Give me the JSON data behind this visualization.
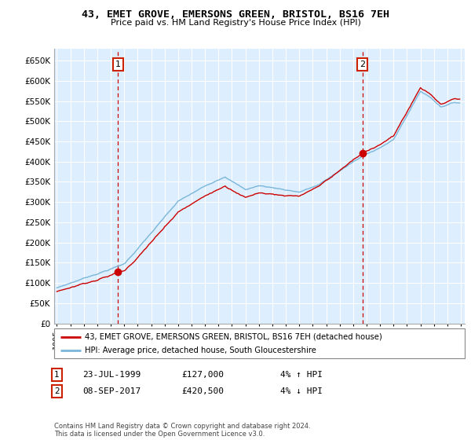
{
  "title": "43, EMET GROVE, EMERSONS GREEN, BRISTOL, BS16 7EH",
  "subtitle": "Price paid vs. HM Land Registry's House Price Index (HPI)",
  "ylabel_ticks": [
    "£650K",
    "£600K",
    "£550K",
    "£500K",
    "£450K",
    "£400K",
    "£350K",
    "£300K",
    "£250K",
    "£200K",
    "£150K",
    "£100K",
    "£50K",
    "£0"
  ],
  "ytick_values": [
    650000,
    600000,
    550000,
    500000,
    450000,
    400000,
    350000,
    300000,
    250000,
    200000,
    150000,
    100000,
    50000,
    0
  ],
  "ylim": [
    0,
    680000
  ],
  "sale1_date": 1999.55,
  "sale1_price": 127000,
  "sale2_date": 2017.69,
  "sale2_price": 420500,
  "hpi_color": "#7ab6d9",
  "price_color": "#cc0000",
  "plot_bg": "#ddeeff",
  "legend_label1": "43, EMET GROVE, EMERSONS GREEN, BRISTOL, BS16 7EH (detached house)",
  "legend_label2": "HPI: Average price, detached house, South Gloucestershire",
  "annotation1_date": "23-JUL-1999",
  "annotation1_price": "£127,000",
  "annotation1_hpi": "4% ↑ HPI",
  "annotation2_date": "08-SEP-2017",
  "annotation2_price": "£420,500",
  "annotation2_hpi": "4% ↓ HPI",
  "footer": "Contains HM Land Registry data © Crown copyright and database right 2024.\nThis data is licensed under the Open Government Licence v3.0.",
  "xlim_start": 1994.8,
  "xlim_end": 2025.3,
  "xtick_years": [
    1995,
    1996,
    1997,
    1998,
    1999,
    2000,
    2001,
    2002,
    2003,
    2004,
    2005,
    2006,
    2007,
    2008,
    2009,
    2010,
    2011,
    2012,
    2013,
    2014,
    2015,
    2016,
    2017,
    2018,
    2019,
    2020,
    2021,
    2022,
    2023,
    2024,
    2025
  ]
}
